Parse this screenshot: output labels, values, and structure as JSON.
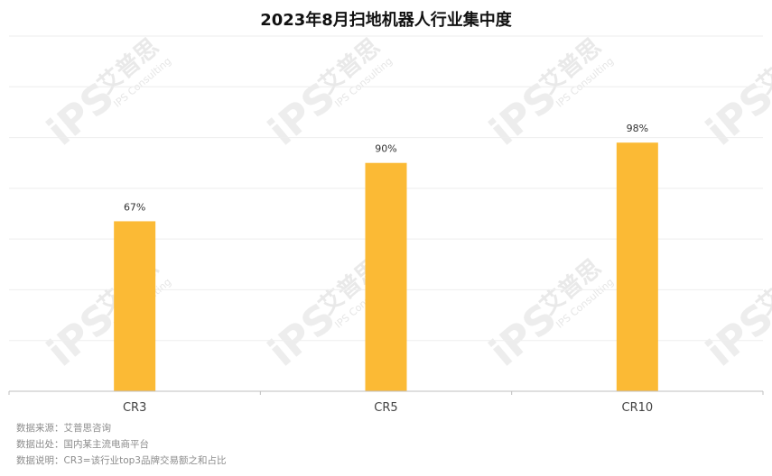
{
  "watermark": {
    "brand_cn": "艾普思",
    "logo": "iPS",
    "brand_en": "IPS Consulting"
  },
  "notes": [
    {
      "label": "数据来源：",
      "value": "艾普思咨询"
    },
    {
      "label": "数据出处：",
      "value": "国内某主流电商平台"
    },
    {
      "label": "数据说明：",
      "value": "CR3=该行业top3品牌交易额之和占比"
    }
  ],
  "colors": {
    "bar": "#FBBA35",
    "grid": "#EEEEEE",
    "axis": "#BFBFBF"
  },
  "chart_data": {
    "type": "bar",
    "title": "2023年8月扫地机器人行业集中度",
    "categories": [
      "CR3",
      "CR5",
      "CR10"
    ],
    "values": [
      67,
      90,
      98
    ],
    "value_labels": [
      "67%",
      "90%",
      "98%"
    ],
    "unit": "%",
    "ylim": [
      0,
      140
    ],
    "grid": true,
    "legend": "none",
    "xlabel": "",
    "ylabel": ""
  }
}
